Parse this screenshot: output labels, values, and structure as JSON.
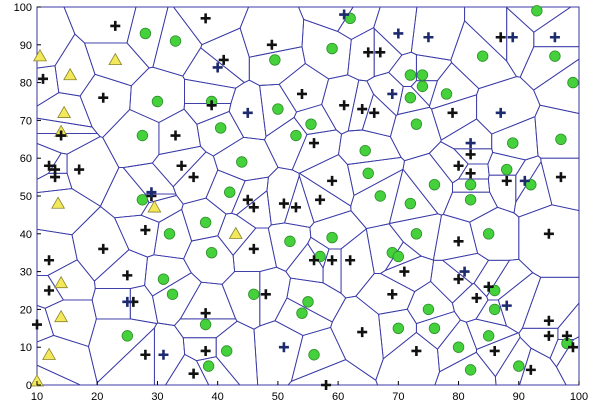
{
  "chart_data": {
    "type": "scatter",
    "title": "",
    "xlabel": "",
    "ylabel": "",
    "xlim": [
      10,
      100
    ],
    "ylim": [
      0,
      100
    ],
    "xticks": [
      10,
      20,
      30,
      40,
      50,
      60,
      70,
      80,
      90,
      100
    ],
    "yticks": [
      0,
      10,
      20,
      30,
      40,
      50,
      60,
      70,
      80,
      90,
      100
    ],
    "grid": false,
    "overlay": "voronoi cell boundaries",
    "series": [
      {
        "marker": "yellow-triangle",
        "color": "#f2e85a",
        "points": [
          [
            10.5,
            87
          ],
          [
            14.5,
            72
          ],
          [
            12,
            8
          ],
          [
            14,
            67
          ],
          [
            13.5,
            48
          ],
          [
            14,
            27
          ],
          [
            14,
            18
          ],
          [
            15.5,
            82
          ],
          [
            23,
            86
          ],
          [
            29.5,
            47
          ],
          [
            43,
            40
          ],
          [
            10,
            1
          ]
        ]
      },
      {
        "marker": "green-circle",
        "color": "#44d13c",
        "points": [
          [
            27.5,
            66
          ],
          [
            27.5,
            49
          ],
          [
            31,
            28
          ],
          [
            32,
            40
          ],
          [
            32.5,
            24
          ],
          [
            30,
            75
          ],
          [
            33,
            91
          ],
          [
            38,
            16
          ],
          [
            38,
            43
          ],
          [
            38.5,
            5
          ],
          [
            39,
            75
          ],
          [
            40.5,
            68
          ],
          [
            41.5,
            9
          ],
          [
            42,
            51
          ],
          [
            44,
            59
          ],
          [
            46,
            24
          ],
          [
            49.5,
            86
          ],
          [
            50,
            73
          ],
          [
            52,
            38
          ],
          [
            53,
            66
          ],
          [
            54,
            19
          ],
          [
            55,
            22
          ],
          [
            55.5,
            69
          ],
          [
            56,
            8
          ],
          [
            57,
            34
          ],
          [
            59,
            89
          ],
          [
            59,
            39
          ],
          [
            62,
            97
          ],
          [
            64.5,
            62
          ],
          [
            65,
            56
          ],
          [
            67,
            50
          ],
          [
            69,
            35
          ],
          [
            70,
            34
          ],
          [
            70,
            15
          ],
          [
            72,
            82
          ],
          [
            72,
            76
          ],
          [
            72,
            48
          ],
          [
            73,
            69
          ],
          [
            73,
            40
          ],
          [
            74,
            82
          ],
          [
            74,
            79
          ],
          [
            75,
            20
          ],
          [
            76,
            53
          ],
          [
            76,
            15
          ],
          [
            78,
            77
          ],
          [
            80,
            10
          ],
          [
            82,
            49
          ],
          [
            82,
            53
          ],
          [
            82,
            4
          ],
          [
            84,
            87
          ],
          [
            85,
            40
          ],
          [
            85,
            13
          ],
          [
            86,
            25
          ],
          [
            86,
            20
          ],
          [
            88,
            57
          ],
          [
            89,
            64
          ],
          [
            90,
            5
          ],
          [
            92,
            53
          ],
          [
            93,
            99
          ],
          [
            96,
            87
          ],
          [
            97,
            65
          ],
          [
            98,
            11
          ],
          [
            99,
            80
          ],
          [
            25,
            13
          ],
          [
            28,
            93
          ],
          [
            39,
            35
          ]
        ]
      },
      {
        "marker": "black-cross",
        "color": "#111111",
        "points": [
          [
            10,
            16
          ],
          [
            11,
            81
          ],
          [
            12,
            33
          ],
          [
            12,
            25
          ],
          [
            12,
            58
          ],
          [
            13,
            55
          ],
          [
            13,
            57
          ],
          [
            14,
            66
          ],
          [
            17,
            57
          ],
          [
            21,
            76
          ],
          [
            21,
            36
          ],
          [
            23,
            95
          ],
          [
            25,
            29
          ],
          [
            26,
            22
          ],
          [
            28,
            41
          ],
          [
            28,
            8
          ],
          [
            29,
            50
          ],
          [
            33,
            66
          ],
          [
            34,
            58
          ],
          [
            36,
            3
          ],
          [
            36,
            55
          ],
          [
            38,
            97
          ],
          [
            38,
            19
          ],
          [
            38,
            9
          ],
          [
            39,
            74
          ],
          [
            41,
            86
          ],
          [
            45,
            49
          ],
          [
            46,
            47
          ],
          [
            46,
            36
          ],
          [
            48,
            24
          ],
          [
            49,
            90
          ],
          [
            51,
            48
          ],
          [
            53,
            47
          ],
          [
            54,
            77
          ],
          [
            56,
            64
          ],
          [
            56,
            33
          ],
          [
            57,
            49
          ],
          [
            58,
            0
          ],
          [
            59,
            54
          ],
          [
            59,
            33
          ],
          [
            62,
            33
          ],
          [
            61,
            74
          ],
          [
            64,
            14
          ],
          [
            64,
            73
          ],
          [
            65,
            88
          ],
          [
            66,
            72
          ],
          [
            67,
            88
          ],
          [
            69,
            24
          ],
          [
            71,
            30
          ],
          [
            73,
            9
          ],
          [
            79,
            72
          ],
          [
            80,
            38
          ],
          [
            80,
            28
          ],
          [
            80,
            58
          ],
          [
            82,
            61
          ],
          [
            82,
            56
          ],
          [
            83,
            23
          ],
          [
            85,
            26
          ],
          [
            86,
            9
          ],
          [
            87,
            92
          ],
          [
            88,
            54
          ],
          [
            92,
            4
          ],
          [
            95,
            40
          ],
          [
            95,
            17
          ],
          [
            95,
            13
          ],
          [
            97,
            55
          ],
          [
            98,
            13
          ],
          [
            99,
            10
          ]
        ]
      },
      {
        "marker": "navy-cross",
        "color": "#1d2a6e",
        "points": [
          [
            25,
            22
          ],
          [
            29,
            51
          ],
          [
            31,
            8
          ],
          [
            40,
            84
          ],
          [
            45,
            72
          ],
          [
            51,
            10
          ],
          [
            61,
            98
          ],
          [
            69,
            77
          ],
          [
            70,
            93
          ],
          [
            75,
            92
          ],
          [
            81,
            30
          ],
          [
            82,
            64
          ],
          [
            87,
            72
          ],
          [
            88,
            21
          ],
          [
            89,
            92
          ],
          [
            91,
            54
          ],
          [
            96,
            92
          ]
        ]
      }
    ]
  }
}
